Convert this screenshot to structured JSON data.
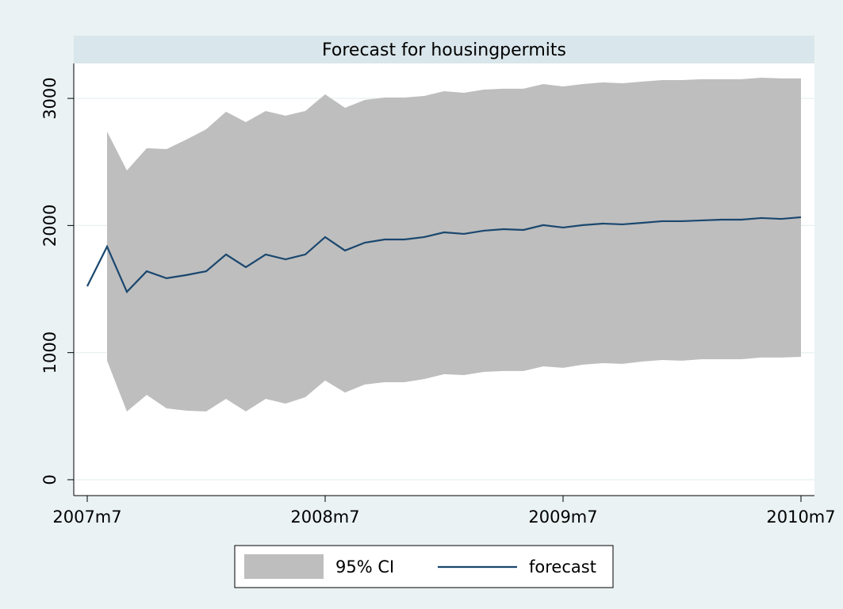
{
  "chart_data": {
    "type": "line",
    "title": "Forecast for housingpermits",
    "categories": [
      "2007m7",
      null,
      null,
      null,
      null,
      null,
      null,
      null,
      null,
      null,
      null,
      null,
      "2008m7",
      null,
      null,
      null,
      null,
      null,
      null,
      null,
      null,
      null,
      null,
      null,
      "2009m7",
      null,
      null,
      null,
      null,
      null,
      null,
      null,
      null,
      null,
      null,
      null,
      "2010m7"
    ],
    "series": [
      {
        "name": "95% CI",
        "type": "band",
        "color": "#bebebe",
        "upper": [
          null,
          2739,
          2433,
          2608,
          2601,
          2676,
          2757,
          2895,
          2813,
          2901,
          2864,
          2901,
          3032,
          2926,
          2988,
          3007,
          3007,
          3019,
          3057,
          3044,
          3069,
          3076,
          3076,
          3113,
          3094,
          3113,
          3126,
          3119,
          3132,
          3144,
          3144,
          3151,
          3151,
          3151,
          3163,
          3157,
          3157
        ],
        "lower": [
          null,
          936,
          537,
          667,
          561,
          543,
          537,
          636,
          537,
          636,
          599,
          649,
          780,
          686,
          749,
          767,
          767,
          792,
          830,
          823,
          848,
          855,
          855,
          892,
          880,
          905,
          917,
          911,
          930,
          942,
          936,
          948,
          948,
          948,
          961,
          961,
          967
        ]
      },
      {
        "name": "forecast",
        "type": "line",
        "color": "#1a476f",
        "values": [
          1522,
          1834,
          1478,
          1640,
          1585,
          1610,
          1640,
          1772,
          1672,
          1772,
          1734,
          1772,
          1909,
          1803,
          1865,
          1890,
          1890,
          1909,
          1946,
          1934,
          1959,
          1971,
          1965,
          2003,
          1984,
          2003,
          2015,
          2009,
          2021,
          2034,
          2034,
          2040,
          2046,
          2046,
          2059,
          2052,
          2065
        ]
      }
    ],
    "ylim": [
      -125,
      3275
    ],
    "yticks": [
      0,
      1000,
      2000,
      3000
    ],
    "grid": true
  }
}
